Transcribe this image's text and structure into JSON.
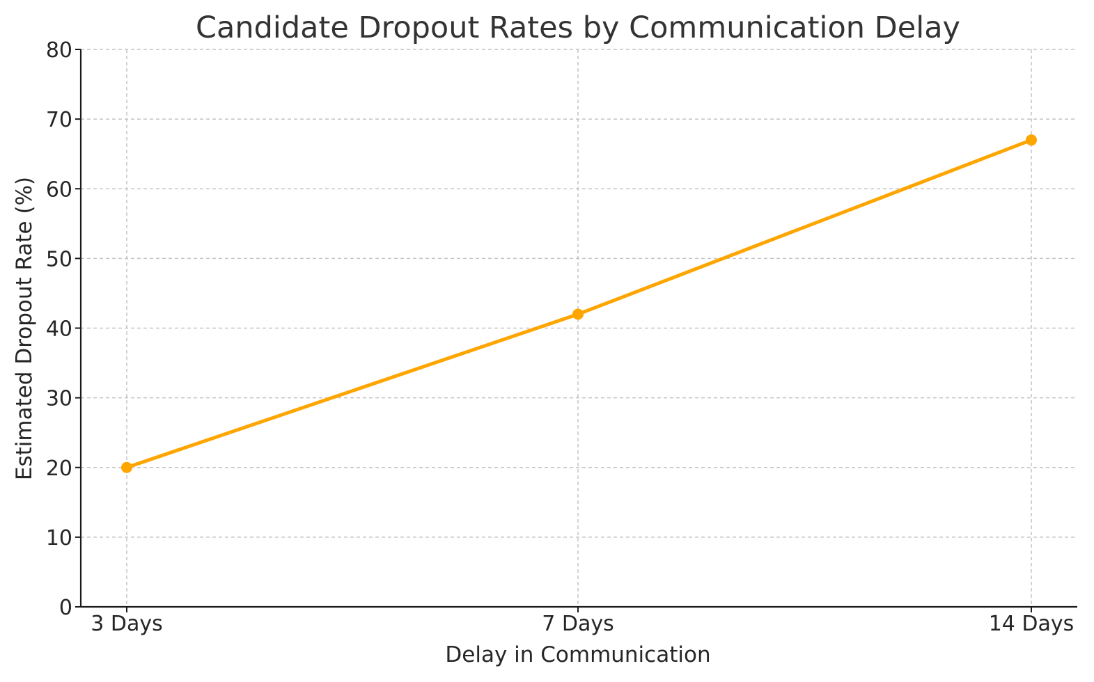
{
  "chart_data": {
    "type": "line",
    "title": "Candidate Dropout Rates by Communication Delay",
    "xlabel": "Delay in Communication",
    "ylabel": "Estimated Dropout Rate (%)",
    "categories": [
      "3 Days",
      "7 Days",
      "14 Days"
    ],
    "series": [
      {
        "values": [
          20,
          42,
          67
        ],
        "color": "#FFA500",
        "marker": "circle"
      }
    ],
    "ylim": [
      0,
      80
    ],
    "yticks": [
      0,
      10,
      20,
      30,
      40,
      50,
      60,
      70,
      80
    ],
    "grid": true,
    "legend": "none"
  }
}
